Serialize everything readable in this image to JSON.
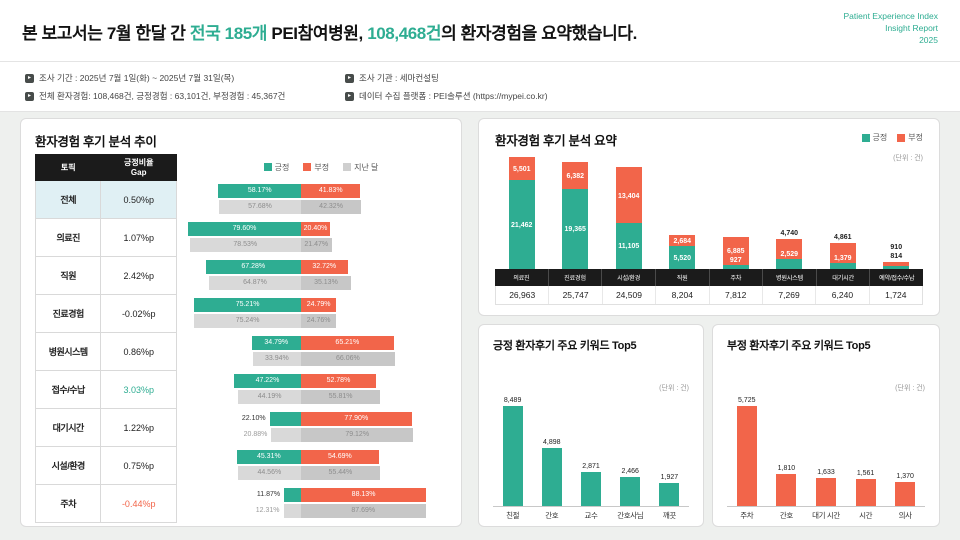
{
  "colors": {
    "positive": "#2ead92",
    "negative": "#f2654a",
    "last_positive": "#d9d9d9",
    "last_negative": "#c7c7c7",
    "accent": "#2ead92"
  },
  "header": {
    "title_parts": [
      {
        "text": "본 보고서는 7월 한달 간 ",
        "accent": false
      },
      {
        "text": "전국 185개",
        "accent": true
      },
      {
        "text": " PEI참여병원, ",
        "accent": false
      },
      {
        "text": "108,468건",
        "accent": true
      },
      {
        "text": "의 환자경험을 요약했습니다.",
        "accent": false
      }
    ],
    "brand_lines": [
      "Patient Experience Index",
      "Insight Report",
      "2025"
    ]
  },
  "meta": {
    "items": [
      "조사 기간 : 2025년 7월 1일(화) ~ 2025년 7월 31일(목)",
      "조사 기관 : 세마컨설팅",
      "전체 환자경험: 108,468건, 긍정경험 : 63,101건, 부정경험 : 45,367건",
      "데이터 수집 플랫폼 : PEI솔루션 (https://mypei.co.kr)"
    ]
  },
  "chart_data": [
    {
      "id": "trend",
      "type": "bar",
      "orientation": "horizontal-diverging-stacked",
      "title": "환자경험 후기 분석 추이",
      "legend": [
        {
          "label": "긍정",
          "color": "#2ead92"
        },
        {
          "label": "부정",
          "color": "#f2654a"
        },
        {
          "label": "지난 달",
          "color": "#cfcfcf"
        }
      ],
      "table_headers": [
        "토픽",
        "긍정비율\nGap"
      ],
      "categories": [
        "전체",
        "의료진",
        "직원",
        "진료경험",
        "병원시스템",
        "접수/수납",
        "대기시간",
        "시설/환경",
        "주차"
      ],
      "gap_labels": [
        "0.50%p",
        "1.07%p",
        "2.42%p",
        "-0.02%p",
        "0.86%p",
        "3.03%p",
        "1.22%p",
        "0.75%p",
        "-0.44%p"
      ],
      "gap_styles": [
        "default",
        "default",
        "default",
        "default",
        "default",
        "positive",
        "default",
        "default",
        "negative"
      ],
      "highlight_row": 0,
      "unit": "%",
      "series": [
        {
          "name": "긍정 (이번 달)",
          "values": [
            58.17,
            79.6,
            67.28,
            75.21,
            34.79,
            47.22,
            22.1,
            45.31,
            11.87
          ]
        },
        {
          "name": "부정 (이번 달)",
          "values": [
            41.83,
            20.4,
            32.72,
            24.79,
            65.21,
            52.78,
            77.9,
            54.69,
            88.13
          ]
        },
        {
          "name": "긍정 (지난 달)",
          "values": [
            57.68,
            78.53,
            64.87,
            75.24,
            33.94,
            44.19,
            20.88,
            44.56,
            12.31
          ]
        },
        {
          "name": "부정 (지난 달)",
          "values": [
            42.32,
            21.47,
            35.13,
            24.76,
            66.06,
            55.81,
            79.12,
            55.44,
            87.69
          ]
        }
      ]
    },
    {
      "id": "summary",
      "type": "bar",
      "orientation": "vertical-stacked",
      "title": "환자경험 후기 분석 요약",
      "legend": [
        {
          "label": "긍정",
          "color": "#2ead92"
        },
        {
          "label": "부정",
          "color": "#f2654a"
        }
      ],
      "unit": "(단위 : 건)",
      "categories": [
        "의료진",
        "진료경험",
        "시설/환경",
        "직원",
        "주차",
        "병원시스템",
        "대기시간",
        "예약/접수/수납"
      ],
      "series": [
        {
          "name": "긍정",
          "values": [
            21462,
            19365,
            11105,
            5520,
            927,
            2529,
            1379,
            814
          ]
        },
        {
          "name": "부정",
          "values": [
            5501,
            6382,
            13404,
            2684,
            6885,
            4740,
            4861,
            910
          ]
        }
      ],
      "totals": [
        26963,
        25747,
        24509,
        8204,
        7812,
        7269,
        6240,
        1724
      ],
      "neg_label_outside": [
        5,
        6,
        7
      ],
      "pos_label_outside": [
        7
      ]
    },
    {
      "id": "positive-keywords",
      "type": "bar",
      "title": "긍정 환자후기 주요 키워드 Top5",
      "unit": "(단위 : 건)",
      "categories": [
        "친절",
        "간호",
        "교수",
        "간호사님",
        "깨끗"
      ],
      "values": [
        8489,
        4898,
        2871,
        2466,
        1927
      ]
    },
    {
      "id": "negative-keywords",
      "type": "bar",
      "title": "부정 환자후기 주요 키워드 Top5",
      "unit": "(단위 : 건)",
      "categories": [
        "주차",
        "간호",
        "대기 시간",
        "시간",
        "의사"
      ],
      "values": [
        5725,
        1810,
        1633,
        1561,
        1370
      ]
    }
  ]
}
